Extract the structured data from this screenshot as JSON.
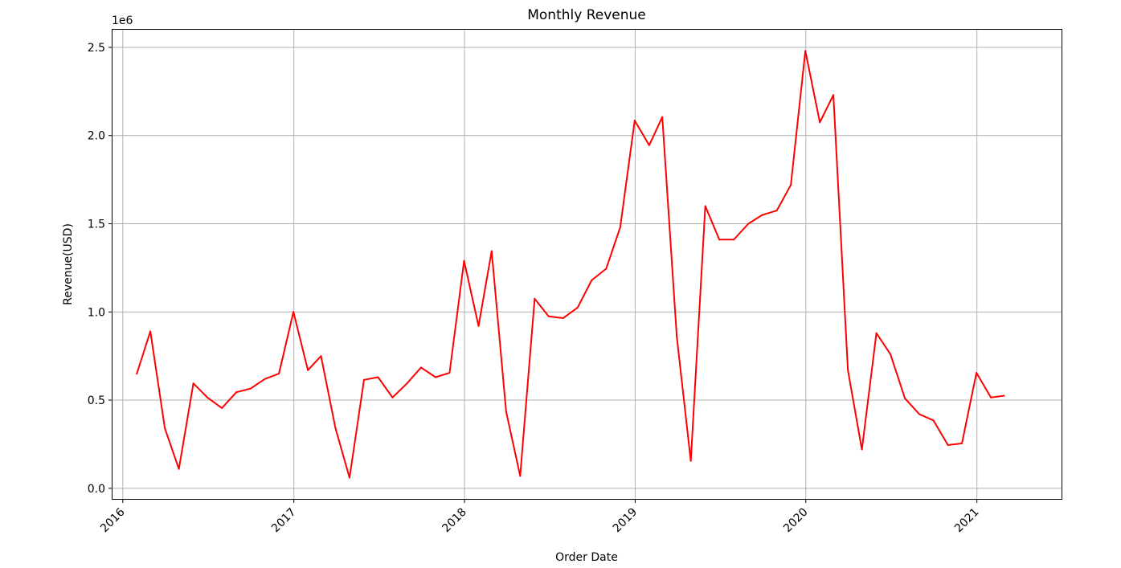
{
  "chart_data": {
    "type": "line",
    "title": "Monthly Revenue",
    "xlabel": "Order Date",
    "ylabel": "Revenue(USD)",
    "y_offset_label": "1e6",
    "x_tick_labels": [
      "2016",
      "2017",
      "2018",
      "2019",
      "2020",
      "2021"
    ],
    "y_tick_labels": [
      "0.0",
      "0.5",
      "1.0",
      "1.5",
      "2.0",
      "2.5"
    ],
    "xlim": [
      "2015-12-10",
      "2021-07-01"
    ],
    "ylim": [
      -60000,
      2600000
    ],
    "grid": true,
    "series": [
      {
        "color": "#ff0000",
        "x": [
          "2016-01-31",
          "2016-02-29",
          "2016-03-31",
          "2016-04-30",
          "2016-05-31",
          "2016-06-30",
          "2016-07-31",
          "2016-08-31",
          "2016-09-30",
          "2016-10-31",
          "2016-11-30",
          "2016-12-31",
          "2017-01-31",
          "2017-02-28",
          "2017-03-31",
          "2017-04-30",
          "2017-05-31",
          "2017-06-30",
          "2017-07-31",
          "2017-08-31",
          "2017-09-30",
          "2017-10-31",
          "2017-11-30",
          "2017-12-31",
          "2018-01-31",
          "2018-02-28",
          "2018-03-31",
          "2018-04-30",
          "2018-05-31",
          "2018-06-30",
          "2018-07-31",
          "2018-08-31",
          "2018-09-30",
          "2018-10-31",
          "2018-11-30",
          "2018-12-31",
          "2019-01-31",
          "2019-02-28",
          "2019-03-31",
          "2019-04-30",
          "2019-05-31",
          "2019-06-30",
          "2019-07-31",
          "2019-08-31",
          "2019-09-30",
          "2019-10-31",
          "2019-11-30",
          "2019-12-31",
          "2020-01-31",
          "2020-02-29",
          "2020-03-31",
          "2020-04-30",
          "2020-05-31",
          "2020-06-30",
          "2020-07-31",
          "2020-08-31",
          "2020-09-30",
          "2020-10-31",
          "2020-11-30",
          "2020-12-31",
          "2021-01-31",
          "2021-02-28"
        ],
        "values": [
          650000,
          890000,
          340000,
          110000,
          595000,
          515000,
          455000,
          545000,
          565000,
          620000,
          650000,
          1000000,
          670000,
          750000,
          340000,
          60000,
          615000,
          630000,
          515000,
          595000,
          685000,
          630000,
          655000,
          1290000,
          920000,
          1345000,
          435000,
          70000,
          1075000,
          975000,
          965000,
          1025000,
          1180000,
          1245000,
          1480000,
          2085000,
          1945000,
          2105000,
          860000,
          155000,
          1600000,
          1410000,
          1410000,
          1500000,
          1550000,
          1575000,
          1720000,
          2480000,
          2075000,
          2230000,
          670000,
          220000,
          880000,
          760000,
          510000,
          420000,
          385000,
          245000,
          255000,
          655000,
          515000,
          525000
        ]
      }
    ]
  }
}
